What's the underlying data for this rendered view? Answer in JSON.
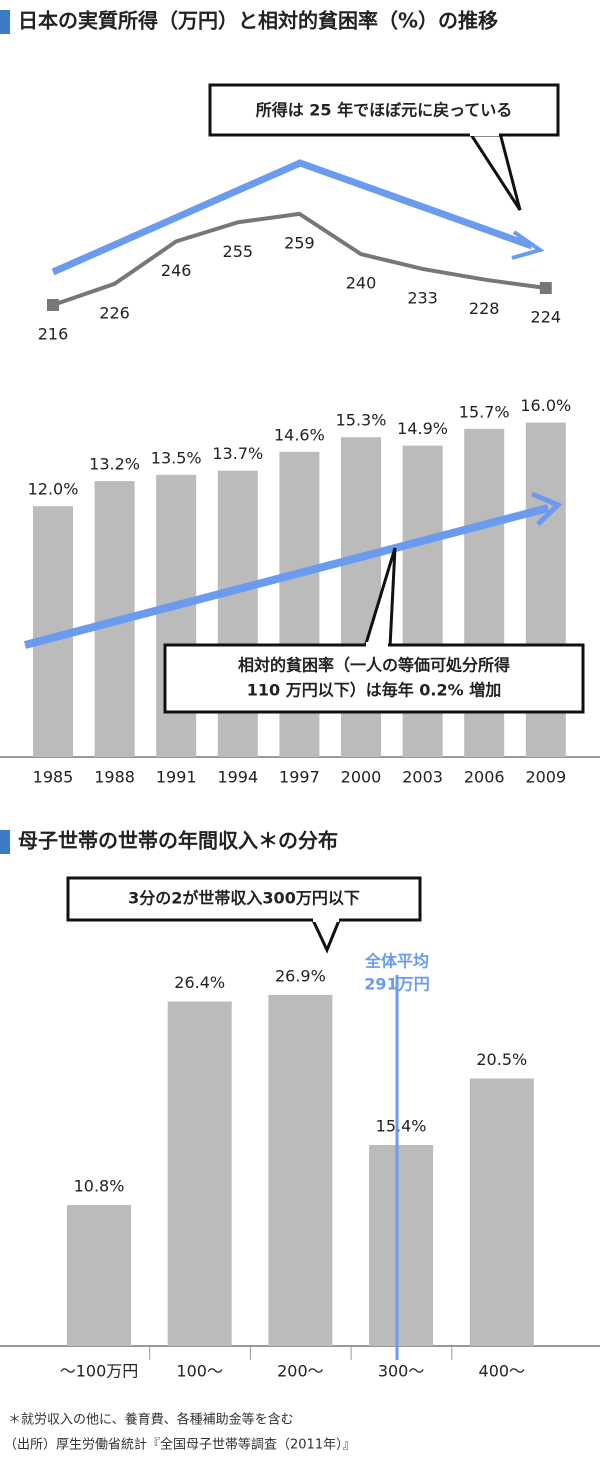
{
  "chart_data": [
    {
      "type": "combo",
      "title": "日本の実質所得（万円）と相対的貧困率（%）の推移",
      "categories": [
        "1985",
        "1988",
        "1991",
        "1994",
        "1997",
        "2000",
        "2003",
        "2006",
        "2009"
      ],
      "line": {
        "values": [
          216,
          226,
          246,
          255,
          259,
          240,
          233,
          228,
          224
        ],
        "color": "#777777"
      },
      "bar": {
        "values": [
          12.0,
          13.2,
          13.5,
          13.7,
          14.6,
          15.3,
          14.9,
          15.7,
          16.0
        ],
        "value_labels": [
          "12.0%",
          "13.2%",
          "13.5%",
          "13.7%",
          "14.6%",
          "15.3%",
          "14.9%",
          "15.7%",
          "16.0%"
        ],
        "color": "#bbbbbb"
      },
      "annotations": [
        "所得は 25 年でほぼ元に戻っている",
        "相対的貧困率（一人の等価可処分所得",
        "110 万円以下）は毎年 0.2% 増加"
      ]
    },
    {
      "type": "bar",
      "title": "母子世帯の世帯の年間収入＊の分布",
      "categories": [
        "～100万円",
        "100～",
        "200～",
        "300～",
        "400～"
      ],
      "values": [
        10.8,
        26.4,
        26.9,
        15.4,
        20.5
      ],
      "value_labels": [
        "10.8%",
        "26.4%",
        "26.9%",
        "15.4%",
        "20.5%"
      ],
      "color": "#bbbbbb",
      "annotations": [
        "3分の2が世帯収入300万円以下",
        "全体平均",
        "291万円"
      ]
    }
  ],
  "notes": [
    "＊就労収入の他に、養育費、各種補助金等を含む",
    "（出所）厚生労働省統計『全国母子世帯等調査（2011年）』"
  ]
}
